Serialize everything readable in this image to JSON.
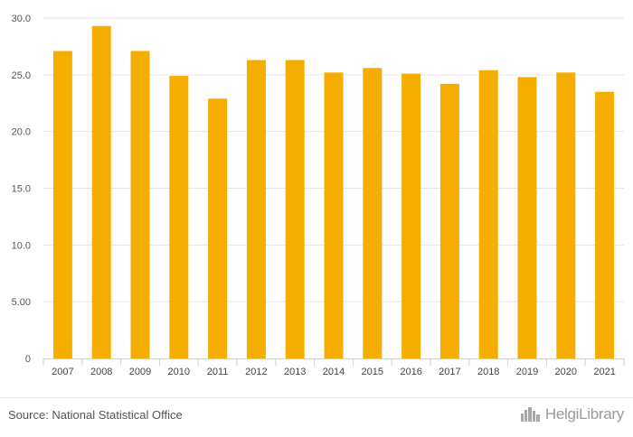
{
  "chart_data": {
    "type": "bar",
    "categories": [
      "2007",
      "2008",
      "2009",
      "2010",
      "2011",
      "2012",
      "2013",
      "2014",
      "2015",
      "2016",
      "2017",
      "2018",
      "2019",
      "2020",
      "2021"
    ],
    "values": [
      27.1,
      29.3,
      27.1,
      24.9,
      22.9,
      26.3,
      26.3,
      25.2,
      25.6,
      25.1,
      24.2,
      25.4,
      24.8,
      25.2,
      23.5
    ],
    "yticks": [
      0,
      5,
      10,
      15,
      20,
      25,
      30
    ],
    "ytick_labels": [
      "0",
      "5.00",
      "10.0",
      "15.0",
      "20.0",
      "25.0",
      "30.0"
    ],
    "ylim": [
      0,
      30
    ],
    "title": "",
    "xlabel": "",
    "ylabel": "",
    "bar_color": "#F5AD00",
    "grid": true
  },
  "footer": {
    "source": "Source: National Statistical Office",
    "brand": "HelgiLibrary",
    "brand_icon": "helgi-city-logo-icon"
  }
}
